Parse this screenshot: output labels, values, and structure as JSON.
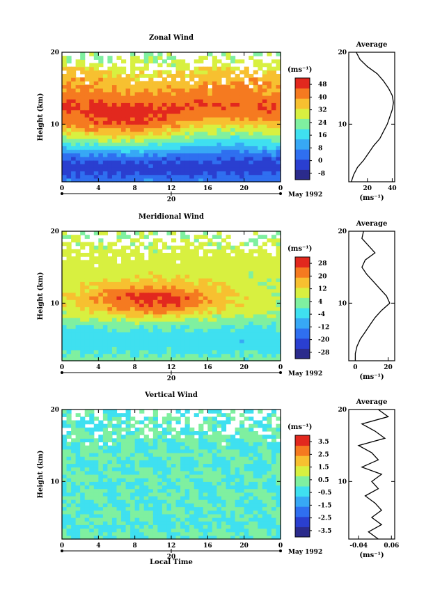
{
  "chart_data": [
    {
      "type": "heatmap",
      "title": "Zonal Wind",
      "xlabel": "",
      "ylabel": "Height (km)",
      "xlim": [
        0,
        24
      ],
      "ylim": [
        2,
        20
      ],
      "xticks": [
        "0",
        "4",
        "8",
        "12",
        "16",
        "20",
        "0"
      ],
      "yticks": [
        "10",
        "20"
      ],
      "date_axis": {
        "tick": "20",
        "label": "May 1992"
      },
      "colorbar": {
        "unit": "(ms⁻¹)",
        "ticks": [
          "48",
          "40",
          "32",
          "24",
          "16",
          "8",
          "0",
          "-8"
        ],
        "range": [
          -12,
          52
        ]
      },
      "profile": {
        "title": "Average",
        "xticks": [
          "20",
          "40"
        ],
        "xlim": [
          5,
          42
        ],
        "xlabel": "(ms⁻¹)",
        "yticks": [
          "10",
          "20"
        ],
        "points": [
          [
            7,
            2
          ],
          [
            9,
            3
          ],
          [
            12,
            4
          ],
          [
            17,
            5
          ],
          [
            21,
            6
          ],
          [
            25,
            7
          ],
          [
            30,
            8
          ],
          [
            33,
            9
          ],
          [
            36,
            10
          ],
          [
            38,
            11
          ],
          [
            40,
            12
          ],
          [
            41,
            13
          ],
          [
            40,
            14
          ],
          [
            37,
            15
          ],
          [
            33,
            16
          ],
          [
            28,
            17
          ],
          [
            20,
            18
          ],
          [
            14,
            19
          ],
          [
            11,
            20
          ]
        ]
      }
    },
    {
      "type": "heatmap",
      "title": "Meridional Wind",
      "xlabel": "",
      "ylabel": "Height (km)",
      "xlim": [
        0,
        24
      ],
      "ylim": [
        2,
        20
      ],
      "xticks": [
        "0",
        "4",
        "8",
        "12",
        "16",
        "20",
        "0"
      ],
      "yticks": [
        "10",
        "20"
      ],
      "date_axis": {
        "tick": "20",
        "label": "May 1992"
      },
      "colorbar": {
        "unit": "(ms⁻¹)",
        "ticks": [
          "28",
          "20",
          "12",
          "4",
          "-4",
          "-12",
          "-20",
          "-28"
        ],
        "range": [
          -32,
          32
        ]
      },
      "profile": {
        "title": "Average",
        "xticks": [
          "0",
          "20"
        ],
        "xlim": [
          -4,
          24
        ],
        "xlabel": "(ms⁻¹)",
        "yticks": [
          "10",
          "20"
        ],
        "points": [
          [
            0,
            2
          ],
          [
            0,
            3
          ],
          [
            1,
            4
          ],
          [
            3,
            5
          ],
          [
            6,
            6
          ],
          [
            9,
            7
          ],
          [
            12,
            8
          ],
          [
            16,
            9
          ],
          [
            21,
            10
          ],
          [
            19,
            11
          ],
          [
            15,
            12
          ],
          [
            11,
            13
          ],
          [
            7,
            14
          ],
          [
            4,
            15
          ],
          [
            6,
            16
          ],
          [
            12,
            17
          ],
          [
            8,
            18
          ],
          [
            4,
            19
          ],
          [
            5,
            20
          ]
        ]
      }
    },
    {
      "type": "heatmap",
      "title": "Vertical Wind",
      "xlabel": "Local Time",
      "ylabel": "Height (km)",
      "xlim": [
        0,
        24
      ],
      "ylim": [
        2,
        20
      ],
      "xticks": [
        "0",
        "4",
        "8",
        "12",
        "16",
        "20",
        "0"
      ],
      "yticks": [
        "10",
        "20"
      ],
      "date_axis": {
        "tick": "20",
        "label": "May 1992"
      },
      "colorbar": {
        "unit": "(ms⁻¹)",
        "ticks": [
          "3.5",
          "2.5",
          "1.5",
          "0.5",
          "-0.5",
          "-1.5",
          "-2.5",
          "-3.5"
        ],
        "range": [
          -4,
          4
        ]
      },
      "profile": {
        "title": "Average",
        "xticks": [
          "-0.04",
          "0.06"
        ],
        "xlim": [
          -0.07,
          0.07
        ],
        "xlabel": "(ms⁻¹)",
        "yticks": [
          "10",
          "20"
        ],
        "points": [
          [
            0.02,
            2
          ],
          [
            -0.01,
            3
          ],
          [
            0.03,
            4
          ],
          [
            0.0,
            5
          ],
          [
            0.03,
            6
          ],
          [
            0.01,
            7
          ],
          [
            -0.02,
            8
          ],
          [
            0.02,
            9
          ],
          [
            0.0,
            10
          ],
          [
            0.03,
            11
          ],
          [
            -0.03,
            12
          ],
          [
            0.02,
            13
          ],
          [
            0.0,
            14
          ],
          [
            -0.04,
            15
          ],
          [
            0.04,
            16
          ],
          [
            0.01,
            17
          ],
          [
            -0.03,
            18
          ],
          [
            0.05,
            19
          ],
          [
            0.02,
            20
          ]
        ]
      }
    }
  ],
  "colors": {
    "scale": [
      "#2b2b8c",
      "#2a3fd0",
      "#2f6ff0",
      "#37a8f5",
      "#3fe0f0",
      "#7ff0a0",
      "#d8f040",
      "#f7c030",
      "#f57a20",
      "#e2281e"
    ]
  }
}
